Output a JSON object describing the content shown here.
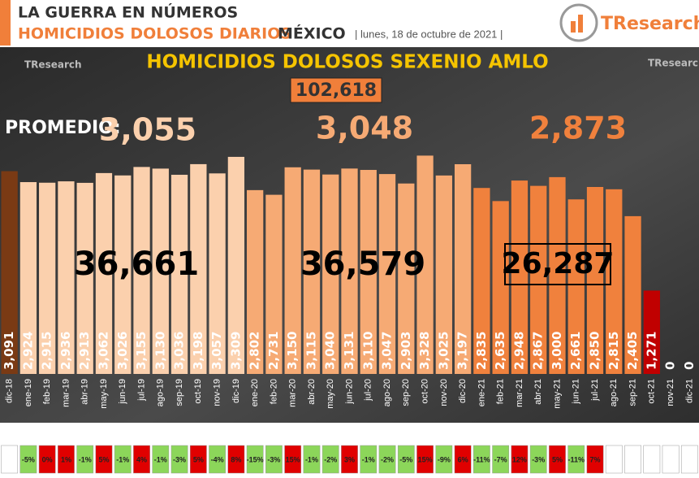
{
  "header": {
    "kicker": "LA GUERRA EN NÚMEROS",
    "topic": "HOMICIDIOS DOLOSOS DIARIOS",
    "country": "MÉXICO",
    "date": "| lunes, 18 de octubre de 2021 |",
    "brand": "TResearch"
  },
  "chart_data": {
    "type": "bar",
    "title": "HOMICIDIOS DOLOSOS SEXENIO AMLO",
    "total_label": "102,618",
    "average_label": "PROMEDIO:",
    "averages": [
      "3,055",
      "3,048",
      "2,873"
    ],
    "year_totals": [
      "36,661",
      "36,579",
      "26,287"
    ],
    "categories": [
      "dic-18",
      "ene-19",
      "feb-19",
      "mar-19",
      "abr-19",
      "may-19",
      "jun-19",
      "jul-19",
      "ago-19",
      "sep-19",
      "oct-19",
      "nov-19",
      "dic-19",
      "ene-20",
      "feb-20",
      "mar-20",
      "abr-20",
      "may-20",
      "jun-20",
      "jul-20",
      "ago-20",
      "sep-20",
      "oct-20",
      "nov-20",
      "dic-20",
      "ene-21",
      "feb-21",
      "mar-21",
      "abr-21",
      "may-21",
      "jun-21",
      "jul-21",
      "ago-21",
      "sep-21",
      "oct-21",
      "nov-21",
      "dic-21"
    ],
    "values": [
      3091,
      2924,
      2915,
      2936,
      2913,
      3062,
      3026,
      3155,
      3130,
      3036,
      3198,
      3057,
      3309,
      2802,
      2731,
      3150,
      3115,
      3040,
      3131,
      3110,
      3047,
      2903,
      3328,
      3025,
      3197,
      2835,
      2635,
      2948,
      2867,
      3000,
      2661,
      2850,
      2815,
      2405,
      1271,
      0,
      0
    ],
    "value_labels": [
      "3,091",
      "2,924",
      "2,915",
      "2,936",
      "2,913",
      "3,062",
      "3,026",
      "3,155",
      "3,130",
      "3,036",
      "3,198",
      "3,057",
      "3,309",
      "2,802",
      "2,731",
      "3,150",
      "3,115",
      "3,040",
      "3,131",
      "3,110",
      "3,047",
      "2,903",
      "3,328",
      "3,025",
      "3,197",
      "2,835",
      "2,635",
      "2,948",
      "2,867",
      "3,000",
      "2,661",
      "2,850",
      "2,815",
      "2,405",
      "1,271",
      "0",
      "0"
    ],
    "colors": [
      "#7a3a14",
      "#fbd0ad",
      "#fbd0ad",
      "#fbd0ad",
      "#fbd0ad",
      "#fbd0ad",
      "#fbd0ad",
      "#fbd0ad",
      "#fbd0ad",
      "#fbd0ad",
      "#fbd0ad",
      "#fbd0ad",
      "#fbd0ad",
      "#f6aa74",
      "#f6aa74",
      "#f6aa74",
      "#f6aa74",
      "#f6aa74",
      "#f6aa74",
      "#f6aa74",
      "#f6aa74",
      "#f6aa74",
      "#f6aa74",
      "#f6aa74",
      "#f6aa74",
      "#f0813d",
      "#f0813d",
      "#f0813d",
      "#f0813d",
      "#f0813d",
      "#f0813d",
      "#f0813d",
      "#f0813d",
      "#f0813d",
      "#c00000",
      "#f0813d",
      "#f0813d"
    ],
    "ylim": [
      0,
      5700
    ],
    "changes": {
      "values": [
        null,
        -5,
        0,
        1,
        -1,
        5,
        -1,
        4,
        -1,
        -3,
        5,
        -4,
        8,
        -15,
        -3,
        15,
        -1,
        -2,
        3,
        -1,
        -2,
        -5,
        15,
        -9,
        6,
        -11,
        -7,
        12,
        -3,
        5,
        -11,
        7,
        null,
        null,
        null,
        null,
        null
      ],
      "value_labels": [
        null,
        "-5%",
        "0%",
        "1%",
        "-1%",
        "5%",
        "-1%",
        "4%",
        "-1%",
        "-3%",
        "5%",
        "-4%",
        "8%",
        "-15%",
        "-3%",
        "15%",
        "-1%",
        "-2%",
        "3%",
        "-1%",
        "-2%",
        "-5%",
        "15%",
        "-9%",
        "6%",
        "-11%",
        "-7%",
        "12%",
        "-3%",
        "5%",
        "-11%",
        "7%",
        null,
        null,
        null,
        null,
        null
      ]
    }
  }
}
